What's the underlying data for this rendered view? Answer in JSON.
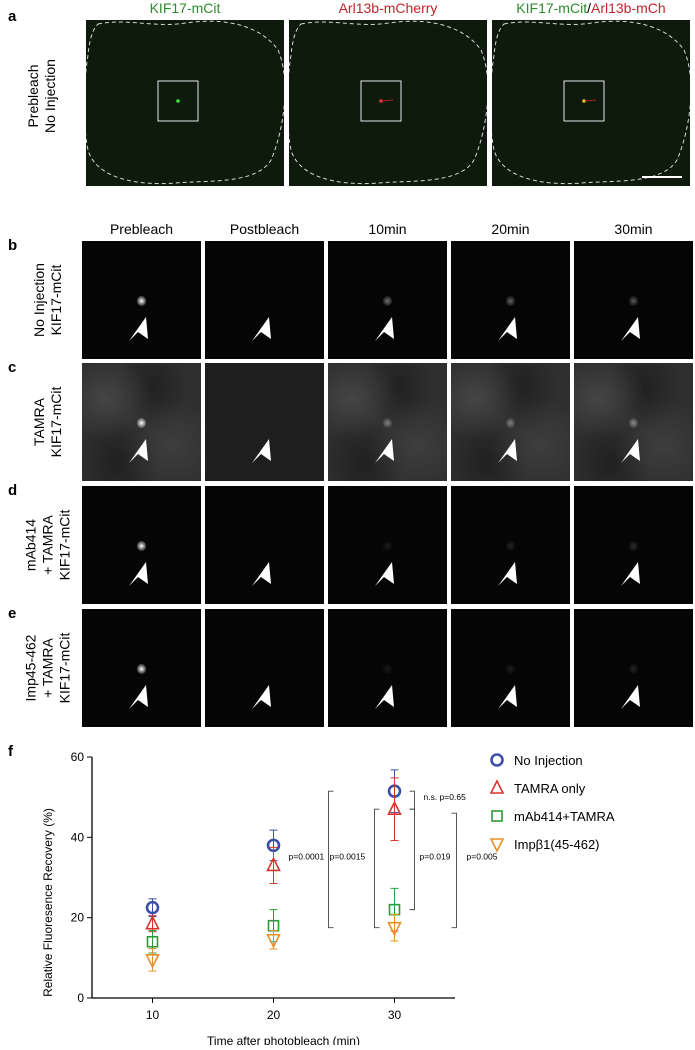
{
  "panel_a": {
    "label": "a",
    "row_label_lines": [
      "Prebleach",
      "No Injection"
    ],
    "titles": [
      {
        "parts": [
          {
            "text": "KIF17-mCit",
            "color": "#2e8b2e"
          }
        ]
      },
      {
        "parts": [
          {
            "text": "Arl13b-mCherry",
            "color": "#c0262c"
          }
        ]
      },
      {
        "parts": [
          {
            "text": "KIF17-mCit",
            "color": "#2e8b2e"
          },
          {
            "text": "/",
            "color": "#000000"
          },
          {
            "text": "Arl13b-mCh",
            "color": "#c0262c"
          }
        ]
      }
    ]
  },
  "grid": {
    "columns": [
      "Prebleach",
      "Postbleach",
      "10min",
      "20min",
      "30min"
    ],
    "rows": [
      {
        "label": "b",
        "lines": [
          "No Injection",
          "KIF17-mCit"
        ],
        "noisy": false,
        "spots": [
          1.0,
          0.0,
          0.45,
          0.4,
          0.35
        ]
      },
      {
        "label": "c",
        "lines": [
          "TAMRA",
          "KIF17-mCit"
        ],
        "noisy": true,
        "spots": [
          1.0,
          0.0,
          0.5,
          0.5,
          0.55
        ]
      },
      {
        "label": "d",
        "lines": [
          "mAb414",
          "+ TAMRA",
          "KIF17-mCit"
        ],
        "noisy": false,
        "spots": [
          1.0,
          0.0,
          0.12,
          0.15,
          0.18
        ]
      },
      {
        "label": "e",
        "lines": [
          "Imp45-462",
          "+ TAMRA",
          "KIF17-mCit"
        ],
        "noisy": false,
        "spots": [
          1.0,
          0.0,
          0.1,
          0.12,
          0.14
        ]
      }
    ]
  },
  "panel_f": {
    "label": "f"
  },
  "chart_data": {
    "type": "scatter",
    "xlabel": "Time after photobleach (min)",
    "ylabel": "Relative Fluoresence Recovery (%)",
    "x": [
      10,
      20,
      30
    ],
    "xlim": [
      5,
      35
    ],
    "ylim": [
      0,
      60
    ],
    "yticks": [
      0,
      20,
      40,
      60
    ],
    "xticks": [
      10,
      20,
      30
    ],
    "series": [
      {
        "name": "No Injection",
        "marker": "circle",
        "color": "#3a4fa8",
        "values": [
          22.5,
          38,
          51.5
        ],
        "errors": [
          2.2,
          3.8,
          5.3
        ]
      },
      {
        "name": "TAMRA only",
        "marker": "triangle-up",
        "color": "#d9342b",
        "values": [
          18.5,
          33,
          47
        ],
        "errors": [
          2.0,
          4.5,
          7.8
        ]
      },
      {
        "name": "mAb414+TAMRA",
        "marker": "square",
        "color": "#2f9a3a",
        "values": [
          14,
          18,
          22
        ],
        "errors": [
          2.8,
          4.0,
          5.3
        ]
      },
      {
        "name": "Impβ1(45-462)",
        "marker": "triangle-down",
        "color": "#e8902a",
        "values": [
          9.5,
          14.5,
          17.5
        ],
        "errors": [
          2.8,
          2.3,
          3.3
        ]
      }
    ],
    "annotations": [
      {
        "text": "n.s. p=0.65",
        "from": 51.5,
        "to": 47
      },
      {
        "text": "p=0.019",
        "from": 47,
        "to": 22
      },
      {
        "text": "p=0.005",
        "from": 46,
        "to": 17.5
      },
      {
        "text": "p=0.0015",
        "from": 47,
        "to": 17.5
      },
      {
        "text": "p=0.0001",
        "from": 51.5,
        "to": 17.5
      }
    ],
    "legend_position": "right"
  }
}
